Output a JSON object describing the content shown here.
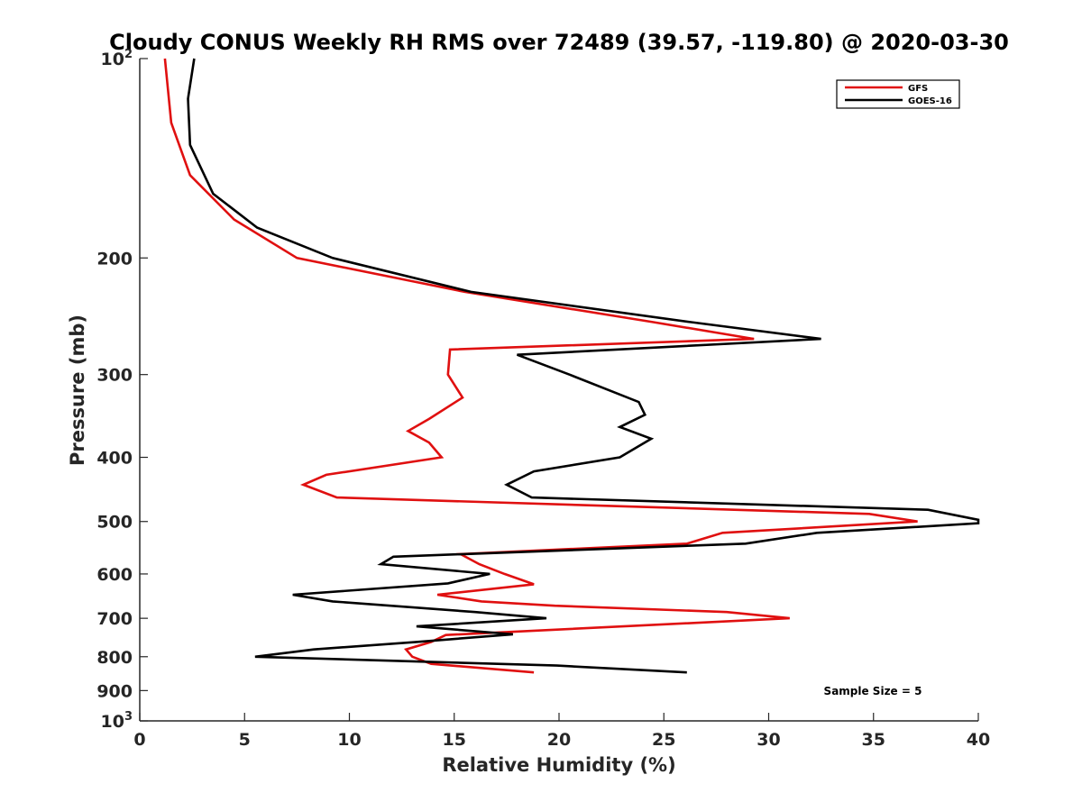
{
  "chart_data": {
    "type": "line",
    "title": "Cloudy CONUS Weekly RH RMS over 72489 (39.57, -119.80) @ 2020-03-30",
    "xlabel": "Relative Humidity (%)",
    "ylabel": "Pressure (mb)",
    "xlim": [
      0,
      40
    ],
    "ylim": [
      100,
      1000
    ],
    "yscale": "log",
    "y_reversed": true,
    "grid": false,
    "legend_position": "top-right",
    "x_ticks": [
      "0",
      "5",
      "10",
      "15",
      "20",
      "25",
      "30",
      "35",
      "40"
    ],
    "y_ticks": [
      {
        "value": 100,
        "base": "10",
        "exp": "2"
      },
      {
        "value": 200,
        "label": "200"
      },
      {
        "value": 300,
        "label": "300"
      },
      {
        "value": 400,
        "label": "400"
      },
      {
        "value": 500,
        "label": "500"
      },
      {
        "value": 600,
        "label": "600"
      },
      {
        "value": 700,
        "label": "700"
      },
      {
        "value": 800,
        "label": "800"
      },
      {
        "value": 900,
        "label": "900"
      },
      {
        "value": 1000,
        "base": "10",
        "exp": "3"
      }
    ],
    "annotation": "Sample Size = 5",
    "series": [
      {
        "name": "GFS",
        "color": "#e01010",
        "points": [
          [
            1.2,
            100
          ],
          [
            1.5,
            125
          ],
          [
            2.4,
            150
          ],
          [
            4.5,
            175
          ],
          [
            7.5,
            200
          ],
          [
            15.5,
            225
          ],
          [
            24.5,
            250
          ],
          [
            29.3,
            265
          ],
          [
            14.8,
            275
          ],
          [
            14.7,
            300
          ],
          [
            15.4,
            325
          ],
          [
            13.8,
            350
          ],
          [
            12.8,
            365
          ],
          [
            13.8,
            380
          ],
          [
            14.4,
            400
          ],
          [
            8.9,
            425
          ],
          [
            7.8,
            440
          ],
          [
            9.4,
            460
          ],
          [
            34.8,
            487
          ],
          [
            37.1,
            500
          ],
          [
            27.8,
            520
          ],
          [
            26.1,
            540
          ],
          [
            15.3,
            560
          ],
          [
            16.2,
            580
          ],
          [
            17.4,
            600
          ],
          [
            18.8,
            622
          ],
          [
            14.2,
            645
          ],
          [
            16.3,
            660
          ],
          [
            19.8,
            670
          ],
          [
            28.0,
            685
          ],
          [
            31.0,
            700
          ],
          [
            14.6,
            742
          ],
          [
            13.9,
            760
          ],
          [
            12.7,
            780
          ],
          [
            13.0,
            800
          ],
          [
            13.9,
            820
          ],
          [
            18.8,
            845
          ]
        ]
      },
      {
        "name": "GOES-16",
        "color": "#000000",
        "points": [
          [
            2.6,
            100
          ],
          [
            2.3,
            115
          ],
          [
            2.4,
            135
          ],
          [
            3.5,
            160
          ],
          [
            5.6,
            180
          ],
          [
            9.2,
            200
          ],
          [
            15.8,
            225
          ],
          [
            26.3,
            250
          ],
          [
            32.5,
            265
          ],
          [
            18.0,
            280
          ],
          [
            20.5,
            300
          ],
          [
            23.8,
            330
          ],
          [
            24.1,
            345
          ],
          [
            22.9,
            360
          ],
          [
            24.4,
            375
          ],
          [
            22.9,
            400
          ],
          [
            18.8,
            420
          ],
          [
            17.5,
            440
          ],
          [
            18.7,
            460
          ],
          [
            37.6,
            480
          ],
          [
            40.0,
            497
          ],
          [
            40.0,
            503
          ],
          [
            32.3,
            520
          ],
          [
            28.9,
            540
          ],
          [
            12.1,
            565
          ],
          [
            11.5,
            580
          ],
          [
            16.7,
            600
          ],
          [
            14.7,
            620
          ],
          [
            7.3,
            645
          ],
          [
            9.2,
            660
          ],
          [
            16.0,
            685
          ],
          [
            19.4,
            700
          ],
          [
            13.2,
            720
          ],
          [
            17.8,
            740
          ],
          [
            13.2,
            760
          ],
          [
            8.3,
            780
          ],
          [
            5.5,
            800
          ],
          [
            19.9,
            825
          ],
          [
            26.1,
            845
          ]
        ]
      }
    ]
  }
}
